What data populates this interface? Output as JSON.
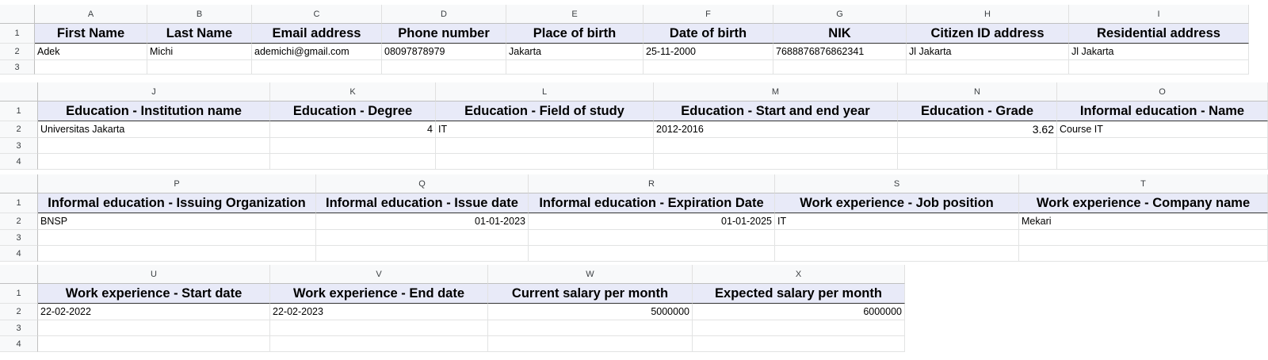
{
  "blocks": [
    {
      "columns": [
        "A",
        "B",
        "C",
        "D",
        "E",
        "F",
        "G",
        "H",
        "I"
      ],
      "row_numbers": [
        "1",
        "2",
        "3"
      ],
      "headers": [
        "First Name",
        "Last Name",
        "Email address",
        "Phone number",
        "Place of birth",
        "Date of birth",
        "NIK",
        "Citizen ID address",
        "Residential address"
      ],
      "values": [
        "Adek",
        "Michi",
        "ademichi@gmail.com",
        "08097878979",
        "Jakarta",
        "25-11-2000",
        "7688876876862341",
        "Jl Jakarta",
        "Jl Jakarta"
      ]
    },
    {
      "columns": [
        "J",
        "K",
        "L",
        "M",
        "N",
        "O"
      ],
      "row_numbers": [
        "1",
        "2",
        "3",
        "4"
      ],
      "headers": [
        "Education - Institution name",
        "Education - Degree",
        "Education - Field of study",
        "Education - Start and end year",
        "Education - Grade",
        "Informal education - Name"
      ],
      "values": [
        "Universitas Jakarta",
        "4",
        "IT",
        "2012-2016",
        "3.62",
        "Course IT"
      ]
    },
    {
      "columns": [
        "P",
        "Q",
        "R",
        "S",
        "T"
      ],
      "row_numbers": [
        "1",
        "2",
        "3",
        "4"
      ],
      "headers": [
        "Informal education - Issuing Organization",
        "Informal education - Issue date",
        "Informal education - Expiration Date",
        "Work experience - Job position",
        "Work experience - Company name"
      ],
      "values": [
        "BNSP",
        "01-01-2023",
        "01-01-2025",
        "IT",
        "Mekari"
      ]
    },
    {
      "columns": [
        "U",
        "V",
        "W",
        "X"
      ],
      "row_numbers": [
        "1",
        "2",
        "3",
        "4"
      ],
      "headers": [
        "Work experience - Start date",
        "Work experience - End date",
        "Current salary per month",
        "Expected salary per month"
      ],
      "values": [
        "22-02-2022",
        "22-02-2023",
        "5000000",
        "6000000"
      ]
    }
  ]
}
